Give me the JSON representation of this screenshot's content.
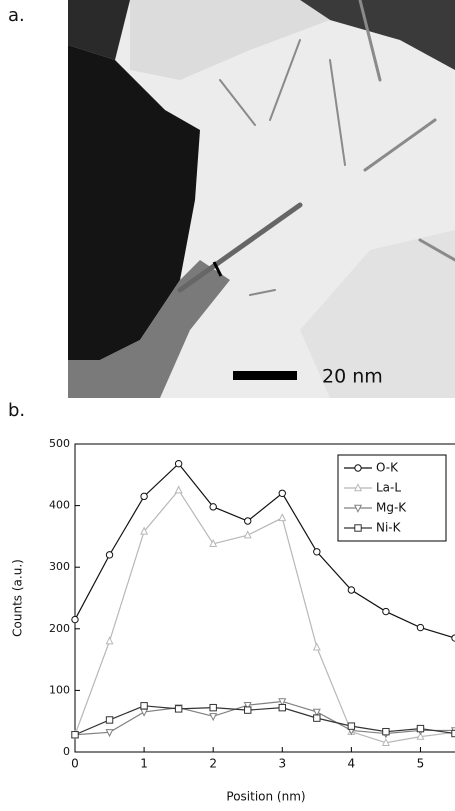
{
  "panel_a": {
    "label": "a.",
    "scale_bar": "20 nm"
  },
  "panel_b": {
    "label": "b."
  },
  "chart_data": {
    "type": "line",
    "x_label": "Position (nm)",
    "y_label": "Counts (a.u.)",
    "x": [
      0,
      0.5,
      1,
      1.5,
      2,
      2.5,
      3,
      3.5,
      4,
      4.5,
      5,
      5.5
    ],
    "series": [
      {
        "name": "O-K",
        "color": "#111111",
        "marker": "circle",
        "values": [
          215,
          320,
          415,
          468,
          398,
          375,
          420,
          325,
          263,
          228,
          202,
          185
        ]
      },
      {
        "name": "La-L",
        "color": "#b8b8b8",
        "marker": "triangle-up",
        "values": [
          28,
          180,
          358,
          425,
          338,
          352,
          380,
          170,
          33,
          15,
          25,
          32
        ]
      },
      {
        "name": "Mg-K",
        "color": "#808080",
        "marker": "triangle-down",
        "values": [
          28,
          32,
          65,
          72,
          58,
          76,
          82,
          65,
          35,
          30,
          35,
          35
        ]
      },
      {
        "name": "Ni-K",
        "color": "#333333",
        "marker": "square",
        "values": [
          28,
          52,
          75,
          70,
          72,
          68,
          72,
          55,
          42,
          33,
          38,
          30
        ]
      }
    ],
    "xlim": [
      0,
      5.5
    ],
    "xticks": [
      0,
      1,
      2,
      3,
      4,
      5
    ],
    "ylim": [
      0,
      500
    ],
    "yticks": [
      0,
      100,
      200,
      300,
      400,
      500
    ],
    "legend": "upper right"
  }
}
